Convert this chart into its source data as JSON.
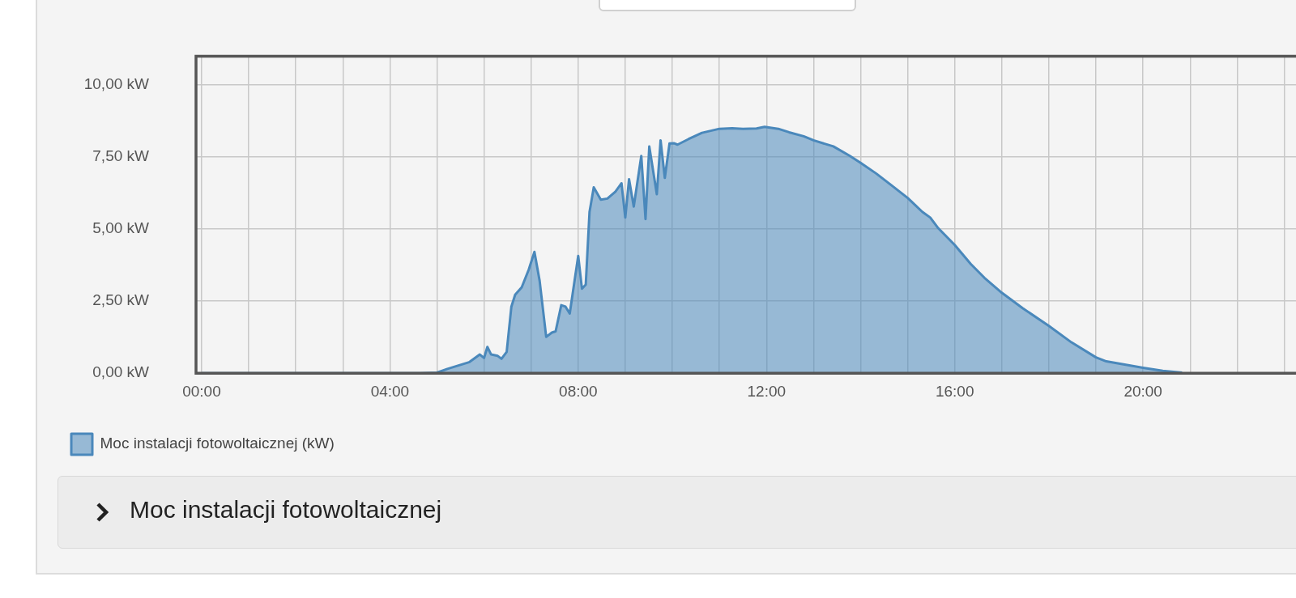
{
  "chart_data": {
    "type": "area",
    "xlim": [
      -0.12,
      23.25
    ],
    "xticks": [
      {
        "value": 0,
        "label": "00:00"
      },
      {
        "value": 1,
        "label": null
      },
      {
        "value": 2,
        "label": null
      },
      {
        "value": 3,
        "label": null
      },
      {
        "value": 4,
        "label": "04:00"
      },
      {
        "value": 5,
        "label": null
      },
      {
        "value": 6,
        "label": null
      },
      {
        "value": 7,
        "label": null
      },
      {
        "value": 8,
        "label": "08:00"
      },
      {
        "value": 9,
        "label": null
      },
      {
        "value": 10,
        "label": null
      },
      {
        "value": 11,
        "label": null
      },
      {
        "value": 12,
        "label": "12:00"
      },
      {
        "value": 13,
        "label": null
      },
      {
        "value": 14,
        "label": null
      },
      {
        "value": 15,
        "label": null
      },
      {
        "value": 16,
        "label": "16:00"
      },
      {
        "value": 17,
        "label": null
      },
      {
        "value": 18,
        "label": null
      },
      {
        "value": 19,
        "label": null
      },
      {
        "value": 20,
        "label": "20:00"
      },
      {
        "value": 21,
        "label": null
      },
      {
        "value": 22,
        "label": null
      },
      {
        "value": 23,
        "label": null
      }
    ],
    "ylim": [
      0,
      11
    ],
    "yticks": [
      {
        "value": 0,
        "label": "0,00 kW"
      },
      {
        "value": 2.5,
        "label": "2,50 kW"
      },
      {
        "value": 5,
        "label": "5,00 kW"
      },
      {
        "value": 7.5,
        "label": "7,50 kW"
      },
      {
        "value": 10,
        "label": "10,00 kW"
      }
    ],
    "grid": true,
    "legend": "bottom left",
    "marker": "none",
    "line_style": "solid",
    "series": [
      {
        "name": "Moc instalacji fotowoltaicznej (kW)",
        "color": "#4a88bb",
        "x": [
          0,
          4.64,
          5.0,
          5.22,
          5.68,
          5.91,
          6.0,
          6.07,
          6.15,
          6.29,
          6.37,
          6.48,
          6.58,
          6.66,
          6.8,
          6.95,
          7.07,
          7.18,
          7.32,
          7.44,
          7.52,
          7.64,
          7.73,
          7.82,
          8.0,
          8.08,
          8.16,
          8.24,
          8.33,
          8.48,
          8.62,
          8.79,
          8.92,
          9.0,
          9.08,
          9.18,
          9.34,
          9.43,
          9.51,
          9.67,
          9.75,
          9.84,
          9.94,
          10.03,
          10.11,
          10.34,
          10.63,
          11.0,
          11.27,
          11.5,
          11.79,
          11.96,
          12.25,
          12.48,
          12.79,
          13.0,
          13.42,
          13.76,
          14.0,
          14.33,
          14.67,
          15.0,
          15.31,
          15.48,
          15.65,
          16.0,
          16.34,
          16.63,
          17.0,
          17.44,
          18.0,
          18.48,
          19.0,
          19.22,
          20.0,
          20.42,
          20.83
        ],
        "values": [
          0,
          0,
          0.02,
          0.15,
          0.38,
          0.65,
          0.53,
          0.91,
          0.65,
          0.6,
          0.5,
          0.74,
          2.31,
          2.72,
          2.98,
          3.6,
          4.21,
          3.21,
          1.26,
          1.41,
          1.45,
          2.36,
          2.31,
          2.07,
          4.07,
          2.93,
          3.07,
          5.59,
          6.45,
          6.02,
          6.06,
          6.3,
          6.59,
          5.4,
          6.73,
          5.78,
          7.54,
          5.35,
          7.87,
          6.21,
          8.08,
          6.78,
          7.97,
          7.98,
          7.93,
          8.12,
          8.34,
          8.48,
          8.5,
          8.48,
          8.49,
          8.55,
          8.48,
          8.36,
          8.22,
          8.08,
          7.87,
          7.55,
          7.3,
          6.93,
          6.5,
          6.08,
          5.6,
          5.4,
          5.03,
          4.45,
          3.79,
          3.31,
          2.79,
          2.26,
          1.64,
          1.07,
          0.55,
          0.41,
          0.19,
          0.08,
          0.02
        ]
      }
    ],
    "annotations": [
      "Moc instalacji fotowoltaicznej"
    ]
  }
}
